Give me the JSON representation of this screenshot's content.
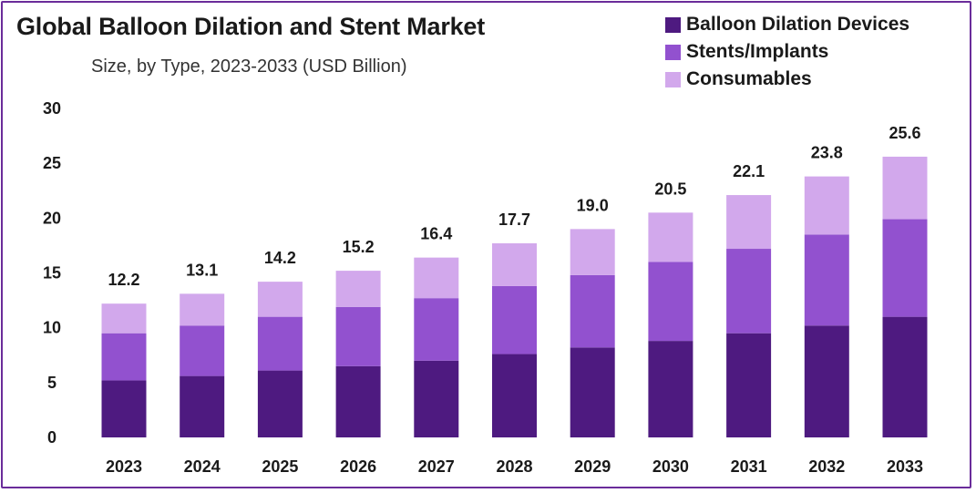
{
  "title": "Global Balloon Dilation and Stent Market",
  "subtitle": "Size, by Type, 2023-2033 (USD Billion)",
  "colors": {
    "frame": "#6a2c9a",
    "balloon": "#4e1a80",
    "stents": "#9251cf",
    "consumables": "#d2a8ec"
  },
  "chart_data": {
    "type": "bar",
    "stacked": true,
    "categories": [
      "2023",
      "2024",
      "2025",
      "2026",
      "2027",
      "2028",
      "2029",
      "2030",
      "2031",
      "2032",
      "2033"
    ],
    "series": [
      {
        "name": "Balloon Dilation Devices",
        "values": [
          5.2,
          5.6,
          6.1,
          6.5,
          7.0,
          7.6,
          8.2,
          8.8,
          9.5,
          10.2,
          11.0
        ]
      },
      {
        "name": "Stents/Implants",
        "values": [
          4.3,
          4.6,
          4.9,
          5.4,
          5.7,
          6.2,
          6.6,
          7.2,
          7.7,
          8.3,
          8.9
        ]
      },
      {
        "name": "Consumables",
        "values": [
          2.7,
          2.9,
          3.2,
          3.3,
          3.7,
          3.9,
          4.2,
          4.5,
          4.9,
          5.3,
          5.7
        ]
      }
    ],
    "totals": [
      "12.2",
      "13.1",
      "14.2",
      "15.2",
      "16.4",
      "17.7",
      "19.0",
      "20.5",
      "22.1",
      "23.8",
      "25.6"
    ],
    "yticks": [
      "0",
      "5",
      "10",
      "15",
      "20",
      "25",
      "30"
    ],
    "ylim": [
      0,
      30
    ],
    "legend_position": "top-right",
    "grid": false,
    "xlabel": "",
    "ylabel": ""
  }
}
